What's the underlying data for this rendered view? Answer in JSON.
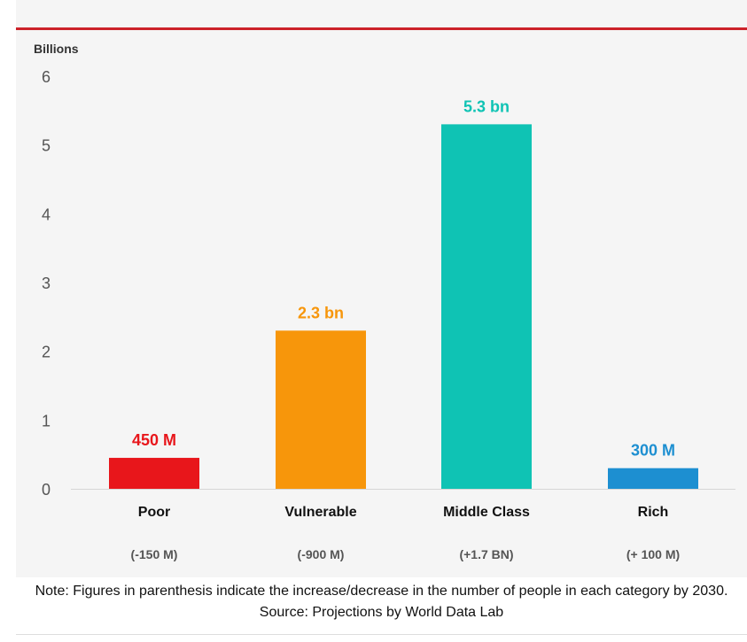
{
  "chart_data": {
    "type": "bar",
    "ylabel": "Billions",
    "ylim": [
      0,
      6
    ],
    "yticks": [
      "0",
      "1",
      "2",
      "3",
      "4",
      "5",
      "6"
    ],
    "categories": [
      "Poor",
      "Vulnerable",
      "Middle Class",
      "Rich"
    ],
    "values": [
      0.45,
      2.3,
      5.3,
      0.3
    ],
    "value_labels": [
      "450 M",
      "2.3 bn",
      "5.3 bn",
      "300 M"
    ],
    "changes": [
      "(-150 M)",
      "(-900 M)",
      "(+1.7 BN)",
      "(+ 100 M)"
    ],
    "colors": [
      "#e8161b",
      "#f7960b",
      "#0fc3b4",
      "#1d8fd1"
    ],
    "grid": false,
    "legend": "none"
  },
  "note": "Note: Figures in parenthesis indicate the increase/decrease in the number of people in each category by 2030. Source: Projections by World Data Lab"
}
